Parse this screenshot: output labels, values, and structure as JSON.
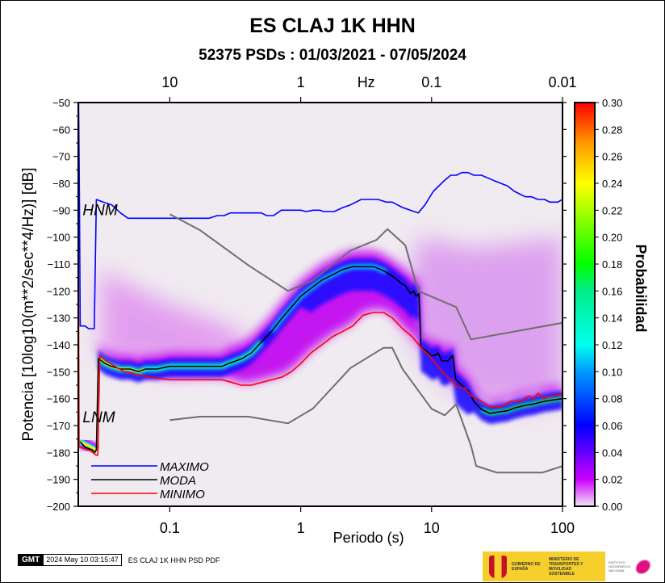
{
  "header": {
    "title": "ES CLAJ 1K HHN",
    "subtitle": "52375 PSDs : 01/03/2021 - 07/05/2024"
  },
  "footer": {
    "gmt_label": "GMT",
    "timestamp": "2024 May 10 03:15:47",
    "plot_name": "ES CLAJ 1K HHN PSD PDF",
    "logo_gov": "GOBIERNO DE ESPAÑA",
    "logo_ministry": "MINISTERIO DE TRANSPORTES Y MOVILIDAD SOSTENIBLE",
    "logo_ign": "INSTITUTO GEOGRÁFICO NACIONAL"
  },
  "chart_data": {
    "type": "heatmap",
    "title": "ES CLAJ 1K HHN",
    "subtitle": "52375 PSDs : 01/03/2021 - 07/05/2024",
    "xlabel": "Periodo (s)",
    "ylabel": "Potencia [10log10(m**2/sec**4/Hz)] [dB]",
    "x_scale": "log",
    "xlim": [
      0.02,
      100
    ],
    "ylim": [
      -200,
      -50
    ],
    "x_ticks": [
      {
        "value": 0.1,
        "label": "0.1"
      },
      {
        "value": 1,
        "label": "1"
      },
      {
        "value": 10,
        "label": "10"
      },
      {
        "value": 100,
        "label": "100"
      }
    ],
    "y_ticks": [
      -50,
      -60,
      -70,
      -80,
      -90,
      -100,
      -110,
      -120,
      -130,
      -140,
      -150,
      -160,
      -170,
      -180,
      -190,
      -200
    ],
    "top_axis": {
      "label": "Hz",
      "ticks": [
        {
          "period": 0.1,
          "label": "10"
        },
        {
          "period": 1,
          "label": "1"
        },
        {
          "period": 10,
          "label": "0.1"
        },
        {
          "period": 100,
          "label": "0.01"
        }
      ]
    },
    "colorbar": {
      "label": "Probabilidad",
      "range": [
        0.0,
        0.3
      ],
      "ticks": [
        "0.00",
        "0.02",
        "0.04",
        "0.06",
        "0.08",
        "0.10",
        "0.12",
        "0.14",
        "0.16",
        "0.18",
        "0.20",
        "0.22",
        "0.24",
        "0.26",
        "0.28",
        "0.30"
      ],
      "stops": [
        {
          "v": 0.0,
          "color": "#f2e6f2"
        },
        {
          "v": 0.02,
          "color": "#cc00ff"
        },
        {
          "v": 0.04,
          "color": "#6600ff"
        },
        {
          "v": 0.06,
          "color": "#0000ff"
        },
        {
          "v": 0.1,
          "color": "#0099ff"
        },
        {
          "v": 0.12,
          "color": "#00ffee"
        },
        {
          "v": 0.16,
          "color": "#00ee88"
        },
        {
          "v": 0.18,
          "color": "#00ff00"
        },
        {
          "v": 0.24,
          "color": "#ffff00"
        },
        {
          "v": 0.27,
          "color": "#ff9900"
        },
        {
          "v": 0.3,
          "color": "#ff0000"
        }
      ]
    },
    "annotations": [
      {
        "text": "HNM",
        "x": 0.021,
        "y": -90
      },
      {
        "text": "LNM",
        "x": 0.021,
        "y": -167
      }
    ],
    "legend": {
      "position": "bottom-left",
      "entries": [
        {
          "name": "MAXIMO",
          "color": "#0000ff"
        },
        {
          "name": "MODA",
          "color": "#000000"
        },
        {
          "name": "MINIMO",
          "color": "#ff0000"
        }
      ]
    },
    "series": [
      {
        "name": "MAXIMO",
        "color": "#0000ff",
        "points": [
          [
            0.0201,
            -50
          ],
          [
            0.0204,
            -85
          ],
          [
            0.0207,
            -133
          ],
          [
            0.0225,
            -133
          ],
          [
            0.024,
            -134
          ],
          [
            0.0265,
            -134
          ],
          [
            0.0275,
            -86
          ],
          [
            0.031,
            -87
          ],
          [
            0.036,
            -88
          ],
          [
            0.042,
            -91
          ],
          [
            0.048,
            -93
          ],
          [
            0.1,
            -93
          ],
          [
            0.2,
            -93
          ],
          [
            0.23,
            -92
          ],
          [
            0.26,
            -92
          ],
          [
            0.29,
            -91
          ],
          [
            0.5,
            -91
          ],
          [
            0.55,
            -92
          ],
          [
            0.62,
            -92
          ],
          [
            0.71,
            -90
          ],
          [
            0.82,
            -90
          ],
          [
            1.0,
            -90
          ],
          [
            1.1,
            -90.5
          ],
          [
            1.25,
            -90
          ],
          [
            1.4,
            -90
          ],
          [
            1.5,
            -90.5
          ],
          [
            1.8,
            -90.5
          ],
          [
            2.1,
            -89
          ],
          [
            2.4,
            -88
          ],
          [
            2.9,
            -86
          ],
          [
            3.9,
            -86
          ],
          [
            4.5,
            -87
          ],
          [
            5.0,
            -87
          ],
          [
            6.0,
            -89
          ],
          [
            7.9,
            -91
          ],
          [
            8.9,
            -88
          ],
          [
            10.3,
            -83
          ],
          [
            12.5,
            -79
          ],
          [
            14.0,
            -77
          ],
          [
            15.5,
            -77
          ],
          [
            17.0,
            -76
          ],
          [
            19.0,
            -76
          ],
          [
            21.0,
            -77
          ],
          [
            24.0,
            -77
          ],
          [
            30.0,
            -79
          ],
          [
            38.0,
            -81
          ],
          [
            43.0,
            -83
          ],
          [
            52.0,
            -85
          ],
          [
            58.0,
            -85
          ],
          [
            65.0,
            -86
          ],
          [
            73.0,
            -86
          ],
          [
            80.0,
            -87
          ],
          [
            92.0,
            -87
          ],
          [
            100.0,
            -86
          ]
        ]
      },
      {
        "name": "MODA",
        "color": "#000000",
        "points": [
          [
            0.0207,
            -176
          ],
          [
            0.0225,
            -178
          ],
          [
            0.0255,
            -179
          ],
          [
            0.0268,
            -180
          ],
          [
            0.0275,
            -179
          ],
          [
            0.0285,
            -145
          ],
          [
            0.032,
            -147
          ],
          [
            0.036,
            -148
          ],
          [
            0.042,
            -149
          ],
          [
            0.05,
            -149
          ],
          [
            0.058,
            -150
          ],
          [
            0.065,
            -149
          ],
          [
            0.08,
            -149
          ],
          [
            0.1,
            -148
          ],
          [
            0.15,
            -148
          ],
          [
            0.25,
            -148
          ],
          [
            0.28,
            -147
          ],
          [
            0.32,
            -146
          ],
          [
            0.36,
            -145
          ],
          [
            0.42,
            -143
          ],
          [
            0.5,
            -139
          ],
          [
            0.6,
            -135
          ],
          [
            0.72,
            -130
          ],
          [
            0.85,
            -126
          ],
          [
            1.0,
            -122
          ],
          [
            1.2,
            -119
          ],
          [
            1.45,
            -116
          ],
          [
            1.75,
            -114
          ],
          [
            2.1,
            -112
          ],
          [
            2.5,
            -111
          ],
          [
            3.0,
            -111
          ],
          [
            3.6,
            -111
          ],
          [
            4.1,
            -112
          ],
          [
            4.5,
            -113
          ],
          [
            5.2,
            -115
          ],
          [
            5.8,
            -117
          ],
          [
            6.3,
            -118
          ],
          [
            6.9,
            -121
          ],
          [
            7.3,
            -120
          ],
          [
            7.6,
            -122
          ],
          [
            8.0,
            -121
          ],
          [
            8.3,
            -141
          ],
          [
            9.0,
            -142
          ],
          [
            10.0,
            -144
          ],
          [
            10.6,
            -144
          ],
          [
            11.2,
            -143
          ],
          [
            12.0,
            -146
          ],
          [
            13.3,
            -146
          ],
          [
            14.5,
            -144
          ],
          [
            15.3,
            -153
          ],
          [
            17.0,
            -155
          ],
          [
            19.0,
            -157
          ],
          [
            21.0,
            -161
          ],
          [
            24.0,
            -164
          ],
          [
            28.0,
            -165.5
          ],
          [
            32.0,
            -165
          ],
          [
            38.0,
            -164.5
          ],
          [
            43.0,
            -163.5
          ],
          [
            52.0,
            -162.5
          ],
          [
            60.0,
            -162
          ],
          [
            73.0,
            -161
          ],
          [
            85.0,
            -160.5
          ],
          [
            100.0,
            -160
          ]
        ]
      },
      {
        "name": "MINIMO",
        "color": "#ff0000",
        "points": [
          [
            0.0199,
            -50
          ],
          [
            0.0203,
            -178
          ],
          [
            0.024,
            -179
          ],
          [
            0.0275,
            -181
          ],
          [
            0.0282,
            -181
          ],
          [
            0.0292,
            -144
          ],
          [
            0.033,
            -146
          ],
          [
            0.038,
            -148
          ],
          [
            0.045,
            -150
          ],
          [
            0.055,
            -151
          ],
          [
            0.07,
            -152
          ],
          [
            0.1,
            -153
          ],
          [
            0.15,
            -153
          ],
          [
            0.2,
            -153
          ],
          [
            0.25,
            -153
          ],
          [
            0.3,
            -154
          ],
          [
            0.35,
            -155
          ],
          [
            0.42,
            -155
          ],
          [
            0.5,
            -154
          ],
          [
            0.6,
            -153
          ],
          [
            0.72,
            -152
          ],
          [
            0.85,
            -150
          ],
          [
            1.0,
            -147
          ],
          [
            1.2,
            -143
          ],
          [
            1.45,
            -140
          ],
          [
            1.75,
            -137
          ],
          [
            2.1,
            -135
          ],
          [
            2.5,
            -133
          ],
          [
            3.0,
            -129
          ],
          [
            3.6,
            -128
          ],
          [
            4.3,
            -128
          ],
          [
            5.0,
            -130
          ],
          [
            6.0,
            -134
          ],
          [
            7.1,
            -137
          ],
          [
            8.3,
            -141
          ],
          [
            10.0,
            -145
          ],
          [
            12.0,
            -150
          ],
          [
            14.0,
            -153
          ],
          [
            16.0,
            -156
          ],
          [
            18.0,
            -156
          ],
          [
            20.0,
            -159
          ],
          [
            24.0,
            -161
          ],
          [
            28.0,
            -163
          ],
          [
            34.0,
            -163
          ],
          [
            40.0,
            -161
          ],
          [
            48.0,
            -161
          ],
          [
            55.0,
            -159
          ],
          [
            60.0,
            -160
          ],
          [
            65.0,
            -158
          ],
          [
            72.0,
            -160
          ],
          [
            80.0,
            -159
          ],
          [
            90.0,
            -159
          ],
          [
            100.0,
            -158
          ]
        ]
      },
      {
        "name": "NHNM",
        "color": "#6e6e6e",
        "points": [
          [
            0.1,
            -91.5
          ],
          [
            0.17,
            -97.4
          ],
          [
            0.4,
            -110.5
          ],
          [
            0.8,
            -120
          ],
          [
            1.24,
            -116
          ],
          [
            2.4,
            -105
          ],
          [
            3.8,
            -101
          ],
          [
            4.6,
            -97
          ],
          [
            6.3,
            -103
          ],
          [
            7.9,
            -120
          ],
          [
            15.4,
            -126
          ],
          [
            20.0,
            -138
          ],
          [
            354.8,
            -127
          ]
        ]
      },
      {
        "name": "NLNM",
        "color": "#6e6e6e",
        "points": [
          [
            0.1,
            -168
          ],
          [
            0.17,
            -166.7
          ],
          [
            0.4,
            -166.7
          ],
          [
            0.8,
            -169.2
          ],
          [
            1.24,
            -163.7
          ],
          [
            2.4,
            -148.6
          ],
          [
            4.3,
            -141.1
          ],
          [
            5.0,
            -141.1
          ],
          [
            6.0,
            -149
          ],
          [
            10.0,
            -163.8
          ],
          [
            12.6,
            -166.2
          ],
          [
            15.4,
            -162.1
          ],
          [
            20.0,
            -177.5
          ],
          [
            21.9,
            -185
          ],
          [
            31.6,
            -187.5
          ],
          [
            45.0,
            -187.5
          ],
          [
            70.0,
            -187.5
          ],
          [
            101.0,
            -185
          ]
        ]
      }
    ],
    "density_band": [
      {
        "note": "modal ridge follows MODA curve; high-probability (yellow/green, ~0.2-0.25) at 0.028-0.07 s and at 20-100 s; cyan/blue (~0.08-0.12) ridge 0.3-5 s; broad low-probability magenta halo 0.03-0.3 s above ridge (-110 to -145 dB) and 10-100 s (-100 to -160 dB)"
      }
    ]
  }
}
